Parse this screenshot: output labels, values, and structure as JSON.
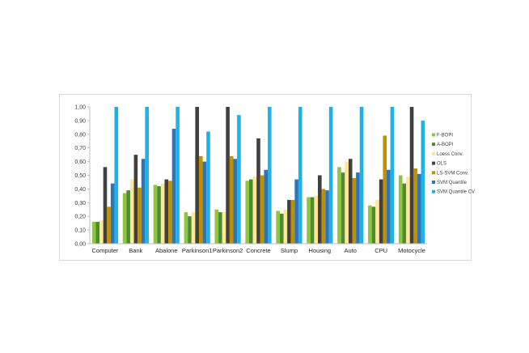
{
  "chart_data": {
    "type": "bar",
    "categories": [
      "Computer",
      "Bank",
      "Abalone",
      "Parkinson1",
      "Parkinson2",
      "Concrete",
      "Slump",
      "Housing",
      "Auto",
      "CPU",
      "Motocycle"
    ],
    "y_ticks": [
      "0,00",
      "0,10",
      "0,20",
      "0,30",
      "0,40",
      "0,50",
      "0,60",
      "0,70",
      "0,80",
      "0,90",
      "1,00"
    ],
    "ylim": [
      0,
      1
    ],
    "grid": false,
    "legend_position": "right",
    "series": [
      {
        "name": "F-BOPI",
        "color": "#8dc63f",
        "values": [
          0.16,
          0.37,
          0.43,
          0.23,
          0.25,
          0.46,
          0.24,
          0.34,
          0.56,
          0.28,
          0.5
        ]
      },
      {
        "name": "A-BOPI",
        "color": "#4e8a2e",
        "values": [
          0.16,
          0.39,
          0.42,
          0.2,
          0.23,
          0.47,
          0.22,
          0.34,
          0.52,
          0.27,
          0.44
        ]
      },
      {
        "name": "Loess Conv.",
        "color": "#ffe699",
        "values": [
          0.17,
          0.47,
          0.44,
          0.23,
          0.23,
          0.49,
          0.25,
          0.35,
          0.6,
          0.32,
          0.49
        ]
      },
      {
        "name": "OLS",
        "color": "#404040",
        "values": [
          0.56,
          0.65,
          0.47,
          1.0,
          1.0,
          0.77,
          0.32,
          0.5,
          0.62,
          0.47,
          1.0
        ]
      },
      {
        "name": "LS-SVM Conv.",
        "color": "#bf9000",
        "values": [
          0.27,
          0.41,
          0.46,
          0.64,
          0.64,
          0.5,
          0.32,
          0.4,
          0.48,
          0.79,
          0.55
        ]
      },
      {
        "name": "SVM Quantile",
        "color": "#2e75b6",
        "values": [
          0.44,
          0.62,
          0.84,
          0.6,
          0.62,
          0.54,
          0.47,
          0.39,
          0.52,
          0.54,
          0.51
        ]
      },
      {
        "name": "SVM Quantile CV",
        "color": "#1cb3ea",
        "values": [
          1.0,
          1.0,
          1.0,
          0.82,
          0.94,
          1.0,
          1.0,
          1.0,
          1.0,
          1.0,
          0.9
        ]
      }
    ]
  }
}
